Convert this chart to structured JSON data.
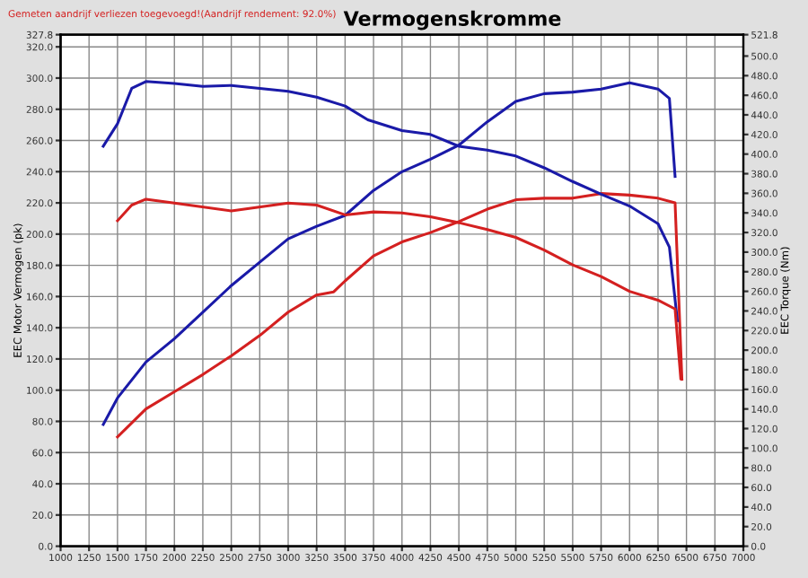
{
  "chart_data": {
    "type": "line",
    "title": "Vermogenskromme",
    "annotations": [
      "Gemeten aandrijf verliezen toegevoegd!(Aandrijf rendement: 92.0%)"
    ],
    "xlabel": null,
    "ylabel": "EEC Motor Vermogen (pk)",
    "y2label": "EEC Torque (Nm)",
    "xlim": [
      1000,
      7000
    ],
    "xticks": [
      1000,
      1250,
      1500,
      1750,
      2000,
      2250,
      2500,
      2750,
      3000,
      3250,
      3500,
      3750,
      4000,
      4250,
      4500,
      4750,
      5000,
      5250,
      5500,
      5750,
      6000,
      6250,
      6500,
      6750,
      7000
    ],
    "ylim": [
      0,
      327.8
    ],
    "yticks": [
      {
        "value": 0,
        "label": "0.0"
      },
      {
        "value": 20,
        "label": "20.0"
      },
      {
        "value": 40,
        "label": "40.0"
      },
      {
        "value": 60,
        "label": "60.0"
      },
      {
        "value": 80,
        "label": "80.0"
      },
      {
        "value": 100,
        "label": "100.0"
      },
      {
        "value": 120,
        "label": "120.0"
      },
      {
        "value": 140,
        "label": "140.0"
      },
      {
        "value": 160,
        "label": "160.0"
      },
      {
        "value": 180,
        "label": "180.0"
      },
      {
        "value": 200,
        "label": "200.0"
      },
      {
        "value": 220,
        "label": "220.0"
      },
      {
        "value": 240,
        "label": "240.0"
      },
      {
        "value": 260,
        "label": "260.0"
      },
      {
        "value": 280,
        "label": "280.0"
      },
      {
        "value": 300,
        "label": "300.0"
      },
      {
        "value": 320,
        "label": "320.0"
      },
      327.8
    ],
    "y2lim": [
      0,
      521.8
    ],
    "y2ticks": [
      {
        "value": 0,
        "label": "0.0"
      },
      {
        "value": 20,
        "label": "20.0"
      },
      {
        "value": 40,
        "label": "40.0"
      },
      {
        "value": 60,
        "label": "60.0"
      },
      {
        "value": 80,
        "label": "80.0"
      },
      {
        "value": 100,
        "label": "100.0"
      },
      {
        "value": 120,
        "label": "120.0"
      },
      {
        "value": 140,
        "label": "140.0"
      },
      {
        "value": 160,
        "label": "160.0"
      },
      {
        "value": 180,
        "label": "180.0"
      },
      {
        "value": 200,
        "label": "200.0"
      },
      {
        "value": 220,
        "label": "220.0"
      },
      {
        "value": 240,
        "label": "240.0"
      },
      {
        "value": 260,
        "label": "260.0"
      },
      {
        "value": 280,
        "label": "280.0"
      },
      {
        "value": 300,
        "label": "300.0"
      },
      {
        "value": 320,
        "label": "320.0"
      },
      {
        "value": 340,
        "label": "340.0"
      },
      {
        "value": 360,
        "label": "360.0"
      },
      {
        "value": 380,
        "label": "380.0"
      },
      {
        "value": 400,
        "label": "400.0"
      },
      {
        "value": 420,
        "label": "420.0"
      },
      {
        "value": 440,
        "label": "440.0"
      },
      {
        "value": 460,
        "label": "460.0"
      },
      {
        "value": 480,
        "label": "480.0"
      },
      {
        "value": 500,
        "label": "500.0"
      },
      521.8
    ],
    "grid": true,
    "legend": false,
    "marker": "none",
    "line_style": "solid",
    "series": [
      {
        "color": "#1a1aa8",
        "x": [
          1375,
          1500,
          1750,
          2000,
          2250,
          2500,
          2750,
          3000,
          3250,
          3500,
          3750,
          4000,
          4250,
          4500,
          4750,
          5000,
          5250,
          5500,
          5750,
          6000,
          6250,
          6350,
          6400
        ],
        "values": [
          78,
          95,
          118,
          133,
          150,
          167,
          182,
          197,
          205,
          212,
          228,
          240,
          248,
          257,
          272,
          285,
          290,
          291,
          293,
          297,
          293,
          287,
          237
        ]
      },
      {
        "color": "#d42020",
        "x": [
          1500,
          1750,
          2000,
          2250,
          2500,
          2750,
          3000,
          3250,
          3400,
          3500,
          3750,
          4000,
          4250,
          4500,
          4750,
          5000,
          5250,
          5500,
          5750,
          6000,
          6250,
          6400,
          6460
        ],
        "values": [
          70,
          88,
          99,
          110,
          122,
          135,
          150,
          161,
          163,
          170,
          186,
          195,
          201,
          208,
          216,
          222,
          223,
          223,
          226,
          225,
          223,
          220,
          107
        ]
      },
      {
        "color": "#1a1aa8",
        "axis": "y2",
        "x": [
          1375,
          1500,
          1625,
          1750,
          2000,
          2250,
          2500,
          2750,
          3000,
          3250,
          3500,
          3700,
          4000,
          4250,
          4500,
          4750,
          5000,
          5250,
          5500,
          5750,
          6000,
          6250,
          6350,
          6420
        ],
        "values": [
          408,
          431,
          467,
          474,
          472,
          469,
          470,
          467,
          464,
          458,
          449,
          435,
          424,
          420,
          408,
          404,
          398,
          386,
          372,
          359,
          347,
          329,
          305,
          230
        ]
      },
      {
        "color": "#d42020",
        "axis": "y2",
        "x": [
          1500,
          1625,
          1750,
          2000,
          2500,
          3000,
          3250,
          3500,
          3750,
          4000,
          4250,
          4500,
          4750,
          5000,
          5250,
          5500,
          5750,
          6000,
          6250,
          6400,
          6450
        ],
        "values": [
          332,
          348,
          354,
          350,
          342,
          350,
          348,
          338,
          341,
          340,
          336,
          330,
          323,
          315,
          302,
          287,
          275,
          260,
          251,
          242,
          171
        ]
      }
    ]
  }
}
